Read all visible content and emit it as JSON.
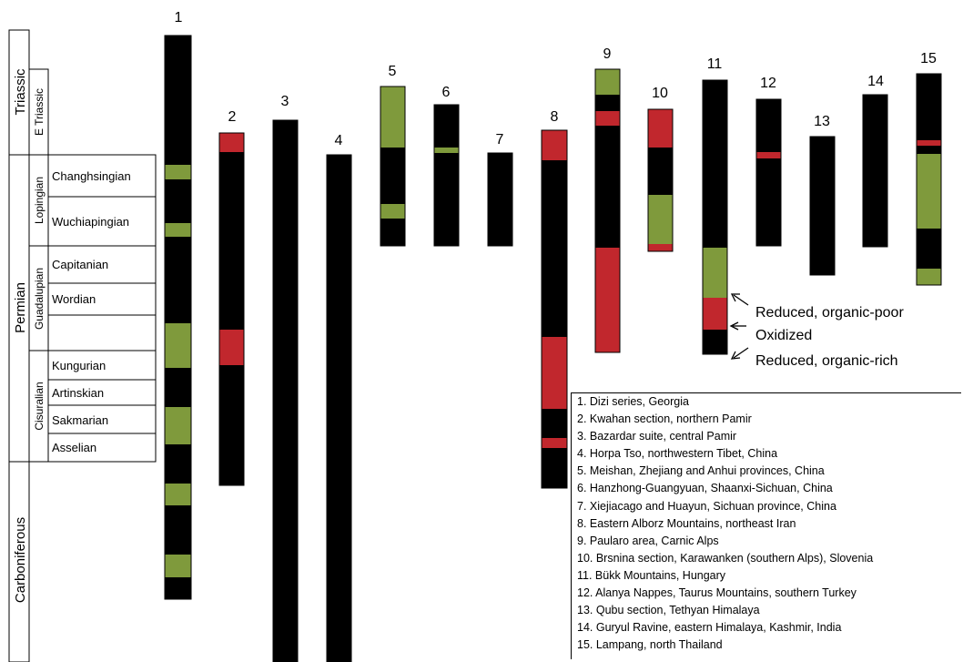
{
  "colors": {
    "reduced_organic_rich": "#000000",
    "oxidized": "#c1272d",
    "reduced_organic_poor": "#7f9a3c"
  },
  "periods": [
    "Triassic",
    "Permian",
    "Carboniferous"
  ],
  "epochs": [
    "E Triassic",
    "Lopingian",
    "Guadalupian",
    "Cisuralian"
  ],
  "stages": [
    "Changhsingian",
    "Wuchiapingian",
    "Capitanian",
    "Wordian",
    "",
    "Kungurian",
    "Artinskian",
    "Sakmarian",
    "Asselian"
  ],
  "columns": [
    {
      "number": "1",
      "segments": [
        "reduced_organic_rich",
        "reduced_organic_poor",
        "reduced_organic_rich",
        "reduced_organic_poor",
        "reduced_organic_rich",
        "reduced_organic_poor",
        "reduced_organic_rich",
        "reduced_organic_poor",
        "reduced_organic_rich",
        "reduced_organic_poor",
        "reduced_organic_rich",
        "reduced_organic_poor",
        "reduced_organic_rich"
      ]
    },
    {
      "number": "2",
      "segments": [
        "oxidized",
        "reduced_organic_rich",
        "oxidized",
        "reduced_organic_rich"
      ]
    },
    {
      "number": "3",
      "segments": [
        "reduced_organic_rich"
      ]
    },
    {
      "number": "4",
      "segments": [
        "reduced_organic_rich"
      ]
    },
    {
      "number": "5",
      "segments": [
        "reduced_organic_poor",
        "reduced_organic_rich",
        "reduced_organic_poor",
        "reduced_organic_rich"
      ]
    },
    {
      "number": "6",
      "segments": [
        "reduced_organic_rich",
        "reduced_organic_poor",
        "reduced_organic_rich"
      ]
    },
    {
      "number": "7",
      "segments": [
        "reduced_organic_rich"
      ]
    },
    {
      "number": "8",
      "segments": [
        "oxidized",
        "reduced_organic_rich",
        "oxidized",
        "reduced_organic_rich",
        "oxidized",
        "reduced_organic_rich"
      ]
    },
    {
      "number": "9",
      "segments": [
        "reduced_organic_poor",
        "reduced_organic_rich",
        "oxidized",
        "reduced_organic_rich",
        "oxidized"
      ]
    },
    {
      "number": "10",
      "segments": [
        "oxidized",
        "reduced_organic_rich",
        "reduced_organic_poor",
        "oxidized"
      ]
    },
    {
      "number": "11",
      "segments": [
        "reduced_organic_rich",
        "reduced_organic_poor",
        "oxidized",
        "reduced_organic_rich"
      ]
    },
    {
      "number": "12",
      "segments": [
        "reduced_organic_rich",
        "oxidized",
        "reduced_organic_rich"
      ]
    },
    {
      "number": "13",
      "segments": [
        "reduced_organic_rich"
      ]
    },
    {
      "number": "14",
      "segments": [
        "reduced_organic_rich"
      ]
    },
    {
      "number": "15",
      "segments": [
        "reduced_organic_rich",
        "oxidized",
        "reduced_organic_rich",
        "reduced_organic_poor",
        "reduced_organic_rich",
        "reduced_organic_poor"
      ]
    }
  ],
  "key": {
    "reduced_organic_poor": "Reduced, organic-poor",
    "oxidized": "Oxidized",
    "reduced_organic_rich": "Reduced, organic-rich"
  },
  "legend": [
    "1. Dizi series, Georgia",
    "2. Kwahan section, northern Pamir",
    "3. Bazardar suite, central Pamir",
    "4. Horpa Tso, northwestern Tibet, China",
    "5. Meishan, Zhejiang and Anhui provinces, China",
    "6. Hanzhong-Guangyuan, Shaanxi-Sichuan, China",
    "7. Xiejiacago and Huayun, Sichuan province, China",
    "8. Eastern Alborz Mountains, northeast Iran",
    "9. Paularo area, Carnic Alps",
    "10. Brsnina section, Karawanken (southern Alps), Slovenia",
    "11. Bükk Mountains, Hungary",
    "12. Alanya Nappes, Taurus Mountains, southern Turkey",
    "13. Qubu section, Tethyan Himalaya",
    "14. Guryul Ravine, eastern Himalaya, Kashmir, India",
    "15. Lampang, north Thailand"
  ]
}
